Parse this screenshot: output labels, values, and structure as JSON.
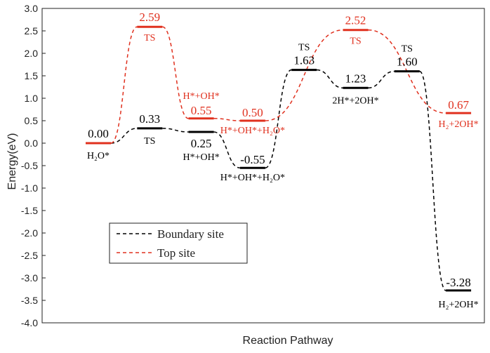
{
  "chart_data": {
    "type": "line",
    "xlabel": "Reaction Pathway",
    "ylabel": "Energy(eV)",
    "ylim": [
      -4.0,
      3.0
    ],
    "y_ticks": [
      "3.0",
      "2.5",
      "2.0",
      "1.5",
      "1.0",
      "0.5",
      "0.0",
      "-0.5",
      "-1.0",
      "-1.5",
      "-2.0",
      "-2.5",
      "-3.0",
      "-3.5",
      "-4.0"
    ],
    "grid": false,
    "legend_position": "lower-left",
    "x_slots": 8,
    "series": [
      {
        "name": "Boundary site",
        "color": "#000000",
        "levels": [
          {
            "slot": 0,
            "value": 0.0,
            "value_label": "0.00",
            "state": "H₂O*"
          },
          {
            "slot": 1,
            "value": 0.33,
            "value_label": "0.33",
            "state": "TS"
          },
          {
            "slot": 2,
            "value": 0.25,
            "value_label": "0.25",
            "state": "H*+OH*"
          },
          {
            "slot": 3,
            "value": -0.55,
            "value_label": "-0.55",
            "state": "H*+OH*+H₂O*"
          },
          {
            "slot": 4,
            "value": 1.63,
            "value_label": "1.63",
            "state": "TS"
          },
          {
            "slot": 5,
            "value": 1.23,
            "value_label": "1.23",
            "state": "2H*+2OH*"
          },
          {
            "slot": 6,
            "value": 1.6,
            "value_label": "1.60",
            "state": "TS"
          },
          {
            "slot": 7,
            "value": -3.28,
            "value_label": "-3.28",
            "state": "H₂+2OH*"
          }
        ]
      },
      {
        "name": "Top site",
        "color": "#e0301e",
        "levels": [
          {
            "slot": 0,
            "value": 0.0,
            "value_label": "",
            "state": ""
          },
          {
            "slot": 1,
            "value": 2.59,
            "value_label": "2.59",
            "state": "TS"
          },
          {
            "slot": 2,
            "value": 0.55,
            "value_label": "0.55",
            "state": "H*+OH*"
          },
          {
            "slot": 3,
            "value": 0.5,
            "value_label": "0.50",
            "state": "H*+OH*+H₂O*"
          },
          {
            "slot": 5,
            "value": 2.52,
            "value_label": "2.52",
            "state": "TS"
          },
          {
            "slot": 7,
            "value": 0.67,
            "value_label": "0.67",
            "state": "H₂+2OH*"
          }
        ]
      }
    ]
  }
}
